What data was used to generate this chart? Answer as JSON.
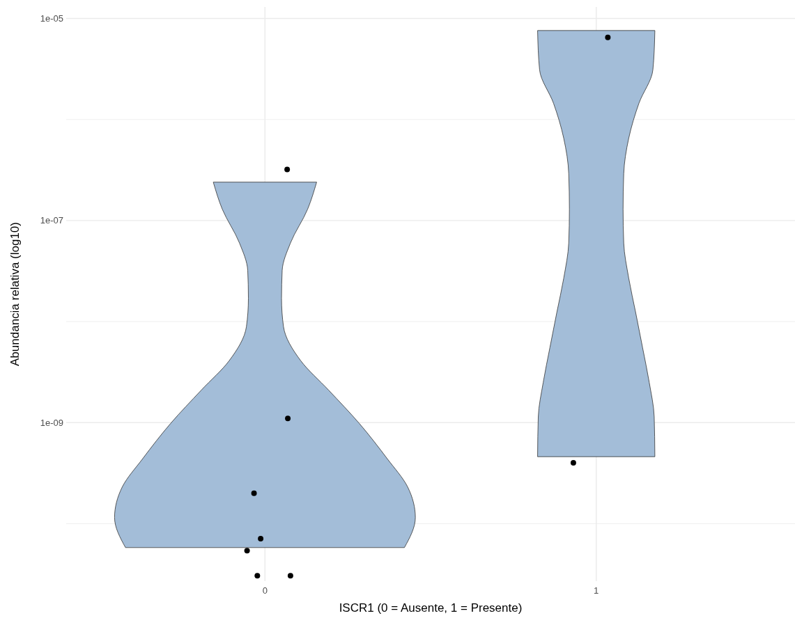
{
  "chart_data": {
    "type": "scatter",
    "xlabel": "ISCR1 (0 = Ausente, 1 = Presente)",
    "ylabel": "Abundancia relativa (log10)",
    "log": "y",
    "grid": true,
    "xlim": [
      -0.6,
      1.6
    ],
    "xticks": [
      0,
      1
    ],
    "ylim": [
      2.7e-11,
      1.3e-05
    ],
    "yticks": [
      {
        "value": 1e-05,
        "label": "1e-05"
      },
      {
        "value": 1e-06,
        "label": null
      },
      {
        "value": 1e-07,
        "label": "1e-07"
      },
      {
        "value": 1e-08,
        "label": null
      },
      {
        "value": 1e-09,
        "label": "1e-09"
      },
      {
        "value": 1e-10,
        "label": null
      }
    ],
    "series": [
      {
        "type": "area",
        "color": "#a3bdd8",
        "x": [
          0.156,
          0.129,
          0.077,
          0.052,
          0.05,
          0.056,
          0.108,
          0.192,
          0.285,
          0.369,
          0.431,
          0.454,
          0.421,
          -0.421,
          -0.454,
          -0.431,
          -0.369,
          -0.285,
          -0.192,
          -0.108,
          -0.056,
          -0.05,
          -0.052,
          -0.077,
          -0.129,
          -0.156
        ],
        "values": [
          2.4e-07,
          1.3e-07,
          6e-08,
          3.2e-08,
          1.7e-08,
          8.9e-09,
          4.1e-09,
          2.1e-09,
          9.8e-10,
          4.4e-10,
          2.3e-10,
          1.15e-10,
          5.8e-11,
          5.8e-11,
          1.15e-10,
          2.3e-10,
          4.4e-10,
          9.8e-10,
          2.1e-09,
          4.1e-09,
          8.9e-09,
          1.7e-08,
          3.2e-08,
          6e-08,
          1.3e-07,
          2.4e-07
        ]
      },
      {
        "type": "area",
        "color": "#a3bdd8",
        "x": [
          1.177,
          1.171,
          1.129,
          1.098,
          1.083,
          1.081,
          1.083,
          1.098,
          1.119,
          1.14,
          1.16,
          1.175,
          1.177,
          0.823,
          0.825,
          0.84,
          0.86,
          0.881,
          0.902,
          0.917,
          0.919,
          0.917,
          0.902,
          0.871,
          0.829,
          0.823
        ],
        "values": [
          7.6e-06,
          3.1e-06,
          1.45e-06,
          6.5e-07,
          2.9e-07,
          1.3e-07,
          6e-08,
          2.7e-08,
          1.23e-08,
          5.5e-09,
          2.5e-09,
          1.14e-09,
          4.6e-10,
          4.6e-10,
          1.14e-09,
          2.5e-09,
          5.5e-09,
          1.23e-08,
          2.7e-08,
          6e-08,
          1.3e-07,
          2.9e-07,
          6.5e-07,
          1.45e-06,
          3.1e-06,
          7.6e-06
        ]
      },
      {
        "marker": "circle",
        "color": "#000000",
        "x": [
          0.067,
          0.069,
          -0.033,
          -0.013,
          -0.054,
          -0.023,
          0.077,
          1.035,
          0.931
        ],
        "values": [
          3.2e-07,
          1.1e-09,
          2e-10,
          7.1e-11,
          5.4e-11,
          3.05e-11,
          3.05e-11,
          6.5e-06,
          4e-10
        ]
      }
    ]
  }
}
